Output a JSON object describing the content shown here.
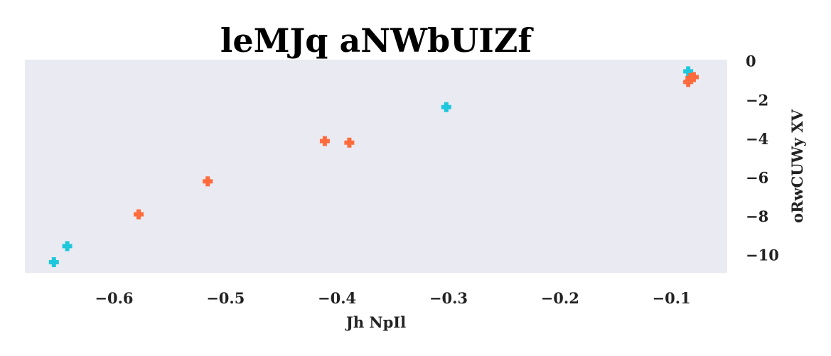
{
  "chart_data": {
    "type": "scatter",
    "title": "leMJq aNWbUIZf",
    "xlabel": "Jh NpIl",
    "ylabel": "oRwCUWy XV",
    "xlim": [
      -0.68,
      -0.05
    ],
    "ylim": [
      -10.9,
      0.1
    ],
    "xticks": [
      -0.6,
      -0.5,
      -0.4,
      -0.3,
      -0.2,
      -0.1
    ],
    "xtick_labels": [
      "−0.6",
      "−0.5",
      "−0.4",
      "−0.3",
      "−0.2",
      "−0.1"
    ],
    "yticks": [
      0,
      -2,
      -4,
      -6,
      -8,
      -10
    ],
    "ytick_labels": [
      "0",
      "−2",
      "−4",
      "−6",
      "−8",
      "−10"
    ],
    "y_axis_side": "right",
    "grid": false,
    "marker": "plus-filled",
    "background": "#eaeaf2",
    "series": [
      {
        "color": "#1ec8dc",
        "points": [
          {
            "x": -0.654,
            "y": -10.35
          },
          {
            "x": -0.642,
            "y": -9.52
          },
          {
            "x": -0.302,
            "y": -2.35
          },
          {
            "x": -0.085,
            "y": -0.5
          }
        ]
      },
      {
        "color": "#ff6b3d",
        "points": [
          {
            "x": -0.578,
            "y": -7.88
          },
          {
            "x": -0.516,
            "y": -6.18
          },
          {
            "x": -0.411,
            "y": -4.1
          },
          {
            "x": -0.389,
            "y": -4.18
          },
          {
            "x": -0.085,
            "y": -1.05
          },
          {
            "x": -0.083,
            "y": -0.85
          },
          {
            "x": -0.08,
            "y": -0.8
          }
        ]
      }
    ]
  }
}
